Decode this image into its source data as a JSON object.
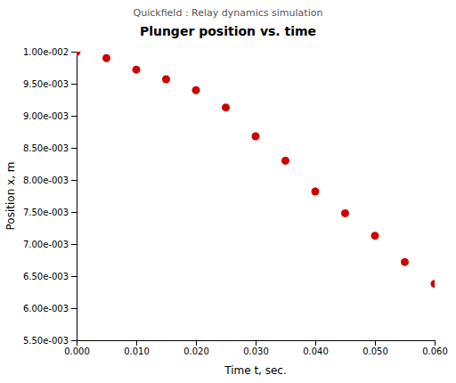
{
  "chart_data": {
    "type": "scatter",
    "title": "Plunger position vs. time",
    "subtitle": "Quickfield : Relay dynamics simulation",
    "xlabel": "Time t, sec.",
    "ylabel": "Position x, m",
    "x": [
      0.0,
      0.005,
      0.01,
      0.015,
      0.02,
      0.025,
      0.03,
      0.035,
      0.04,
      0.045,
      0.05,
      0.055,
      0.06
    ],
    "values": [
      0.01,
      0.0099,
      0.00972,
      0.00957,
      0.0094,
      0.00913,
      0.00868,
      0.0083,
      0.00782,
      0.00748,
      0.00713,
      0.00672,
      0.00638
    ],
    "color": "#cc0000",
    "xlim": [
      0.0,
      0.06
    ],
    "ylim": [
      0.0055,
      0.01
    ],
    "xticks": [
      {
        "value": 0.0,
        "label": "0.000"
      },
      {
        "value": 0.01,
        "label": "0.010"
      },
      {
        "value": 0.02,
        "label": "0.020"
      },
      {
        "value": 0.03,
        "label": "0.030"
      },
      {
        "value": 0.04,
        "label": "0.040"
      },
      {
        "value": 0.05,
        "label": "0.050"
      },
      {
        "value": 0.06,
        "label": "0.060"
      }
    ],
    "yticks": [
      {
        "value": 0.0055,
        "label": "5.50e-003"
      },
      {
        "value": 0.006,
        "label": "6.00e-003"
      },
      {
        "value": 0.0065,
        "label": "6.50e-003"
      },
      {
        "value": 0.007,
        "label": "7.00e-003"
      },
      {
        "value": 0.0075,
        "label": "7.50e-003"
      },
      {
        "value": 0.008,
        "label": "8.00e-003"
      },
      {
        "value": 0.0085,
        "label": "8.50e-003"
      },
      {
        "value": 0.009,
        "label": "9.00e-003"
      },
      {
        "value": 0.0095,
        "label": "9.50e-003"
      },
      {
        "value": 0.01,
        "label": "1.00e-002"
      }
    ],
    "grid": false
  }
}
